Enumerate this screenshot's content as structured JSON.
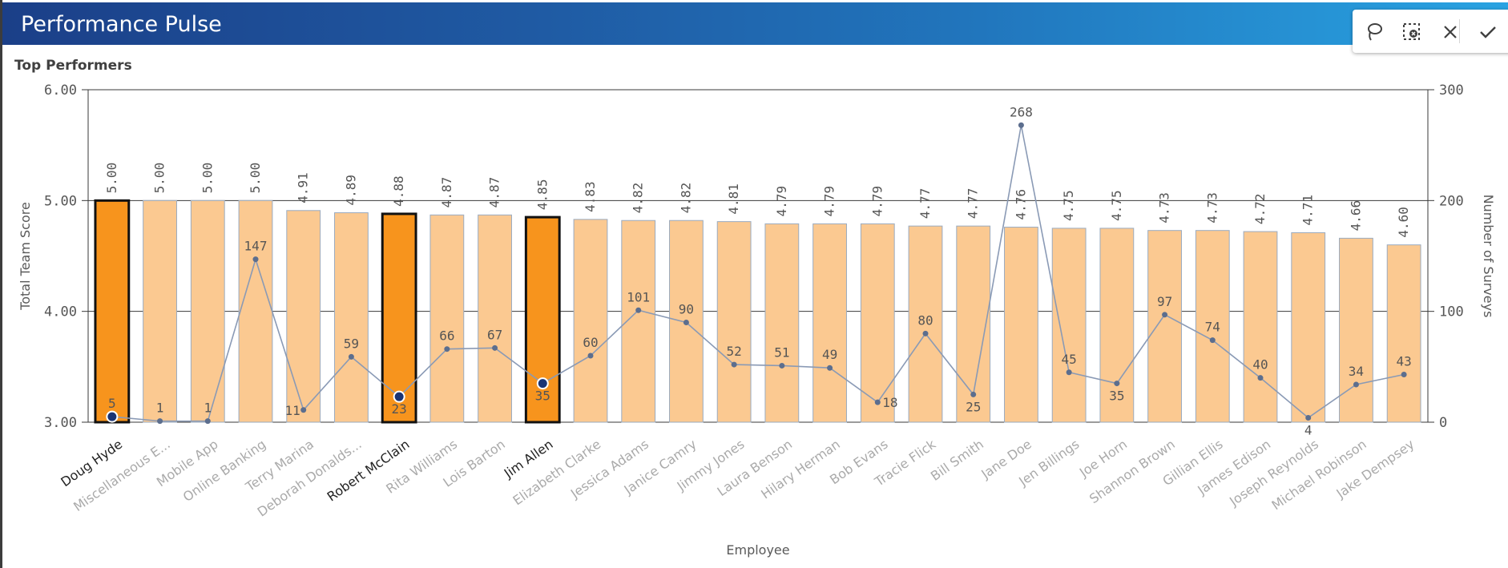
{
  "header": {
    "title": "Performance Pulse"
  },
  "toolbar": [
    {
      "name": "lasso-select-button",
      "icon": "lasso-icon"
    },
    {
      "name": "clear-selection-button",
      "icon": "clear-selection-icon"
    },
    {
      "name": "cancel-button",
      "icon": "close-icon"
    },
    {
      "name": "confirm-button",
      "icon": "check-icon"
    }
  ],
  "section": {
    "title": "Top Performers"
  },
  "colors": {
    "bar": "#fbc991",
    "bar_selected": "#f7941d",
    "bar_stroke": "#9aabc0",
    "line": "#8a9ab5",
    "point": "#5c6e8e",
    "point_selected": "#1a3474",
    "grid": "#3a3a3a",
    "label": "#555555",
    "label_muted": "#aaaaaa",
    "label_selected": "#222222"
  },
  "chart_data": {
    "type": "bar",
    "title": "Top Performers",
    "xlabel": "Employee",
    "ylabel": "Total Team Score",
    "y2label": "Number of Surveys",
    "ylim": [
      3.0,
      6.0
    ],
    "y2lim": [
      0,
      300
    ],
    "yticks": [
      "3.00",
      "4.00",
      "5.00",
      "6.00"
    ],
    "y2ticks": [
      "0",
      "100",
      "200",
      "300"
    ],
    "categories": [
      "Doug Hyde",
      "Miscellaneous E...",
      "Mobile App",
      "Online Banking",
      "Terry Marina",
      "Deborah Donalds...",
      "Robert McClain",
      "Rita Williams",
      "Lois Barton",
      "Jim Allen",
      "Elizabeth Clarke",
      "Jessica Adams",
      "Janice Camry",
      "Jimmy Jones",
      "Laura Benson",
      "Hilary Herman",
      "Bob Evans",
      "Tracie Flick",
      "Bill Smith",
      "Jane Doe",
      "Jen Billings",
      "Joe Horn",
      "Shannon Brown",
      "Gillian Ellis",
      "James Edison",
      "Joseph Reynolds",
      "Michael Robinson",
      "Jake Dempsey"
    ],
    "selected": [
      "Doug Hyde",
      "Robert McClain",
      "Jim Allen"
    ],
    "series": [
      {
        "name": "Total Team Score",
        "type": "bar",
        "axis": "left",
        "values": [
          5.0,
          5.0,
          5.0,
          5.0,
          4.91,
          4.89,
          4.88,
          4.87,
          4.87,
          4.85,
          4.83,
          4.82,
          4.82,
          4.81,
          4.79,
          4.79,
          4.79,
          4.77,
          4.77,
          4.76,
          4.75,
          4.75,
          4.73,
          4.73,
          4.72,
          4.71,
          4.66,
          4.6
        ],
        "labels": [
          "5.00",
          "5.00",
          "5.00",
          "5.00",
          "4.91",
          "4.89",
          "4.88",
          "4.87",
          "4.87",
          "4.85",
          "4.83",
          "4.82",
          "4.82",
          "4.81",
          "4.79",
          "4.79",
          "4.79",
          "4.77",
          "4.77",
          "4.76",
          "4.75",
          "4.75",
          "4.73",
          "4.73",
          "4.72",
          "4.71",
          "4.66",
          "4.60"
        ]
      },
      {
        "name": "Number of Surveys",
        "type": "line",
        "axis": "right",
        "values": [
          5,
          1,
          1,
          147,
          11,
          59,
          23,
          66,
          67,
          35,
          60,
          101,
          90,
          52,
          51,
          49,
          18,
          80,
          25,
          268,
          45,
          35,
          97,
          74,
          40,
          4,
          34,
          43
        ],
        "labels": [
          "5",
          "1",
          "1",
          "147",
          "11",
          "59",
          "23",
          "66",
          "67",
          "35",
          "60",
          "101",
          "90",
          "52",
          "51",
          "49",
          "18",
          "80",
          "25",
          "268",
          "45",
          "35",
          "97",
          "74",
          "40",
          "4",
          "34",
          "43"
        ]
      }
    ],
    "grid": true
  }
}
